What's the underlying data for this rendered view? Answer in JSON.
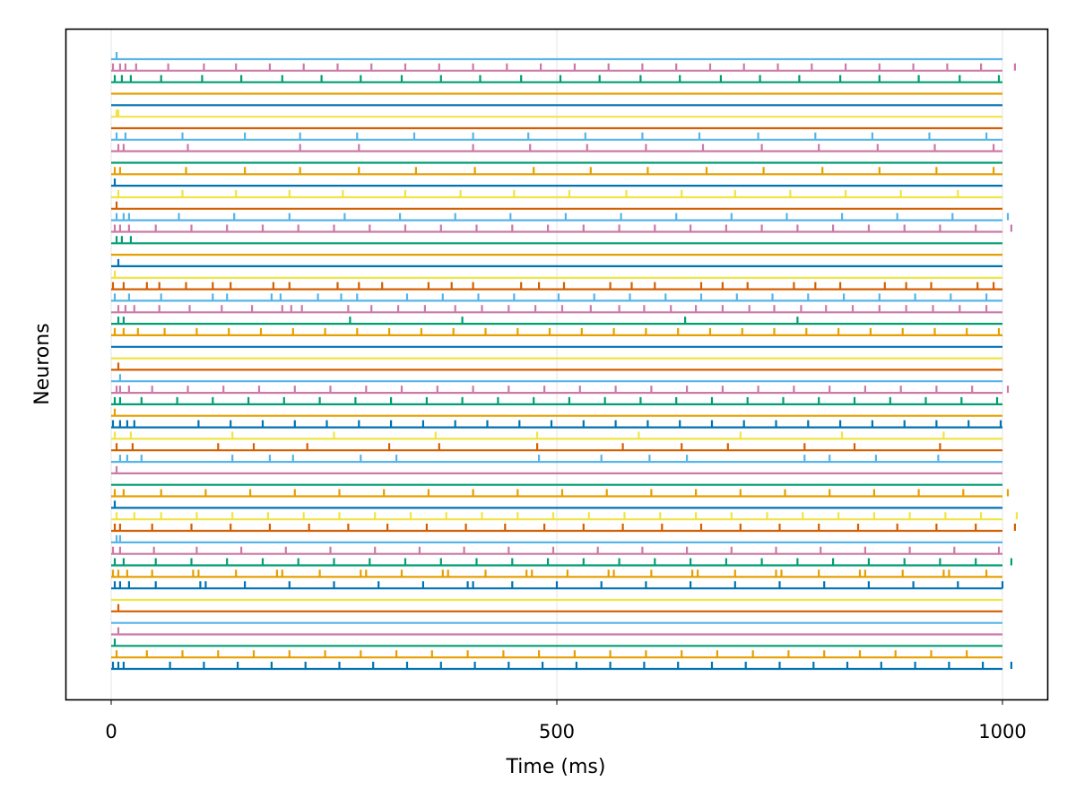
{
  "chart_data": {
    "type": "line",
    "title": "",
    "xlabel": "Time (ms)",
    "ylabel": "Neurons",
    "xlim": [
      0,
      1000
    ],
    "xticks": [
      0,
      500,
      1000
    ],
    "xtick_labels": [
      "0",
      "500",
      "1000"
    ],
    "yticks_shown": false,
    "grid": true,
    "legend": "none",
    "color_cycle": [
      "#0072b2",
      "#e69f00",
      "#009e73",
      "#cc79a7",
      "#56b4e9",
      "#d55e00",
      "#f0e442"
    ],
    "series": [
      {
        "spikes": [
          2,
          8,
          14,
          66,
          104,
          142,
          180,
          218,
          256,
          294,
          332,
          370,
          408,
          446,
          484,
          522,
          560,
          598,
          636,
          674,
          712,
          750,
          788,
          826,
          864,
          902,
          940,
          978,
          1010
        ]
      },
      {
        "spikes": [
          6,
          40,
          80,
          120,
          160,
          200,
          240,
          280,
          320,
          360,
          400,
          440,
          480,
          520,
          560,
          600,
          640,
          680,
          720,
          760,
          800,
          840,
          880,
          920,
          960
        ]
      },
      {
        "spikes": [
          4
        ]
      },
      {
        "spikes": [
          8
        ]
      },
      {
        "spikes": []
      },
      {
        "spikes": [
          8
        ]
      },
      {
        "spikes": []
      },
      {
        "spikes": [
          4,
          10,
          20,
          50,
          100,
          106,
          150,
          200,
          250,
          300,
          350,
          400,
          406,
          450,
          500,
          550,
          600,
          650,
          700,
          750,
          800,
          850,
          900,
          950,
          1000
        ]
      },
      {
        "spikes": [
          2,
          8,
          18,
          46,
          92,
          98,
          140,
          186,
          192,
          234,
          280,
          286,
          326,
          372,
          378,
          420,
          466,
          472,
          512,
          558,
          564,
          606,
          652,
          658,
          700,
          746,
          752,
          794,
          840,
          846,
          888,
          934,
          940,
          982
        ]
      },
      {
        "spikes": [
          4,
          14,
          50,
          90,
          130,
          170,
          210,
          250,
          290,
          330,
          370,
          410,
          450,
          490,
          530,
          570,
          610,
          650,
          690,
          730,
          770,
          810,
          850,
          890,
          930,
          970,
          1010
        ]
      },
      {
        "spikes": [
          2,
          10,
          48,
          96,
          146,
          196,
          246,
          296,
          346,
          396,
          446,
          496,
          546,
          596,
          646,
          696,
          746,
          796,
          846,
          896,
          946,
          996
        ]
      },
      {
        "spikes": [
          6,
          10
        ]
      },
      {
        "spikes": [
          4,
          10,
          46,
          90,
          134,
          178,
          222,
          266,
          310,
          354,
          398,
          442,
          486,
          530,
          574,
          618,
          662,
          706,
          750,
          794,
          838,
          882,
          926,
          970,
          1014
        ]
      },
      {
        "spikes": [
          6,
          26,
          56,
          96,
          136,
          176,
          216,
          256,
          296,
          336,
          376,
          416,
          456,
          496,
          536,
          576,
          616,
          656,
          696,
          736,
          776,
          816,
          856,
          896,
          936,
          976,
          1016
        ]
      },
      {
        "spikes": [
          4
        ]
      },
      {
        "spikes": [
          4,
          14,
          56,
          106,
          156,
          206,
          256,
          306,
          356,
          406,
          456,
          506,
          556,
          606,
          656,
          706,
          756,
          806,
          856,
          906,
          956,
          1006
        ]
      },
      {
        "spikes": []
      },
      {
        "spikes": [
          6
        ]
      },
      {
        "spikes": [
          10,
          18,
          34,
          136,
          178,
          204,
          280,
          320,
          480,
          550,
          604,
          646,
          778,
          806,
          858,
          928
        ]
      },
      {
        "spikes": [
          6,
          24,
          120,
          160,
          220,
          312,
          368,
          478,
          574,
          640,
          692,
          778,
          834,
          930
        ]
      },
      {
        "spikes": [
          4,
          22,
          136,
          250,
          364,
          478,
          592,
          706,
          820,
          934
        ]
      },
      {
        "spikes": [
          2,
          10,
          18,
          26,
          98,
          134,
          170,
          206,
          242,
          278,
          314,
          350,
          386,
          422,
          458,
          494,
          530,
          566,
          602,
          638,
          674,
          710,
          746,
          782,
          818,
          854,
          890,
          926,
          962,
          998
        ]
      },
      {
        "spikes": [
          4
        ]
      },
      {
        "spikes": [
          4,
          10,
          34,
          74,
          114,
          154,
          194,
          234,
          274,
          314,
          354,
          394,
          434,
          474,
          514,
          554,
          594,
          634,
          674,
          714,
          754,
          794,
          834,
          874,
          914,
          954,
          994
        ]
      },
      {
        "spikes": [
          6,
          10,
          20,
          46,
          86,
          126,
          166,
          206,
          246,
          286,
          326,
          366,
          406,
          446,
          486,
          526,
          566,
          606,
          646,
          686,
          726,
          766,
          806,
          846,
          886,
          926,
          966,
          1006
        ]
      },
      {
        "spikes": [
          10
        ]
      },
      {
        "spikes": [
          8
        ]
      },
      {
        "spikes": []
      },
      {
        "spikes": []
      },
      {
        "spikes": [
          4,
          14,
          30,
          60,
          96,
          132,
          168,
          204,
          240,
          276,
          312,
          348,
          384,
          420,
          456,
          492,
          528,
          564,
          600,
          636,
          672,
          708,
          744,
          780,
          816,
          852,
          888,
          924,
          960,
          996
        ]
      },
      {
        "spikes": [
          8,
          14,
          268,
          394,
          644,
          770
        ]
      },
      {
        "spikes": [
          8,
          16,
          26,
          54,
          88,
          124,
          158,
          192,
          202,
          214,
          266,
          292,
          322,
          352,
          386,
          416,
          446,
          476,
          506,
          538,
          570,
          598,
          628,
          656,
          686,
          716,
          744,
          774,
          802,
          832,
          862,
          892,
          922,
          952,
          982
        ]
      },
      {
        "spikes": [
          4,
          20,
          56,
          114,
          130,
          180,
          190,
          232,
          258,
          276,
          332,
          372,
          412,
          452,
          502,
          542,
          582,
          622,
          662,
          702,
          742,
          782,
          822,
          862,
          902,
          942,
          982
        ]
      },
      {
        "spikes": [
          2,
          14,
          40,
          54,
          84,
          114,
          134,
          182,
          200,
          254,
          278,
          304,
          356,
          382,
          406,
          460,
          480,
          508,
          560,
          584,
          610,
          662,
          686,
          714,
          766,
          790,
          818,
          868,
          892,
          920,
          972,
          990
        ]
      },
      {
        "spikes": [
          4
        ]
      },
      {
        "spikes": [
          8
        ]
      },
      {
        "spikes": []
      },
      {
        "spikes": [
          6,
          12,
          22
        ]
      },
      {
        "spikes": [
          4,
          10,
          20,
          50,
          90,
          130,
          170,
          210,
          250,
          290,
          330,
          370,
          410,
          450,
          490,
          530,
          570,
          610,
          650,
          690,
          730,
          770,
          810,
          850,
          890,
          930,
          970,
          1010
        ]
      },
      {
        "spikes": [
          6,
          14,
          20,
          76,
          138,
          200,
          262,
          324,
          386,
          448,
          510,
          572,
          634,
          696,
          758,
          820,
          882,
          944,
          1006
        ]
      },
      {
        "spikes": [
          6
        ]
      },
      {
        "spikes": [
          8,
          80,
          140,
          200,
          260,
          330,
          392,
          452,
          514,
          578,
          640,
          700,
          762,
          824,
          886,
          950
        ]
      },
      {
        "spikes": [
          4
        ]
      },
      {
        "spikes": [
          4,
          10,
          84,
          150,
          212,
          278,
          342,
          408,
          474,
          538,
          602,
          668,
          732,
          798,
          862,
          926,
          990
        ]
      },
      {
        "spikes": []
      },
      {
        "spikes": [
          8,
          14,
          86,
          212,
          278,
          406,
          470,
          534,
          600,
          664,
          730,
          794,
          860,
          924,
          990
        ]
      },
      {
        "spikes": [
          6,
          16,
          80,
          150,
          212,
          276,
          340,
          406,
          468,
          532,
          596,
          660,
          726,
          790,
          854,
          918,
          982
        ]
      },
      {
        "spikes": []
      },
      {
        "spikes": [
          6,
          8
        ]
      },
      {
        "spikes": []
      },
      {
        "spikes": []
      },
      {
        "spikes": [
          4,
          12,
          22,
          56,
          102,
          146,
          192,
          236,
          280,
          326,
          370,
          414,
          460,
          504,
          548,
          594,
          638,
          684,
          728,
          772,
          818,
          862,
          906,
          952,
          996
        ]
      },
      {
        "spikes": [
          2,
          10,
          16,
          28,
          64,
          104,
          140,
          178,
          216,
          254,
          292,
          330,
          368,
          406,
          444,
          482,
          520,
          558,
          596,
          634,
          672,
          710,
          748,
          786,
          824,
          862,
          900,
          938,
          976,
          1014
        ]
      },
      {
        "spikes": [
          6
        ]
      }
    ]
  }
}
